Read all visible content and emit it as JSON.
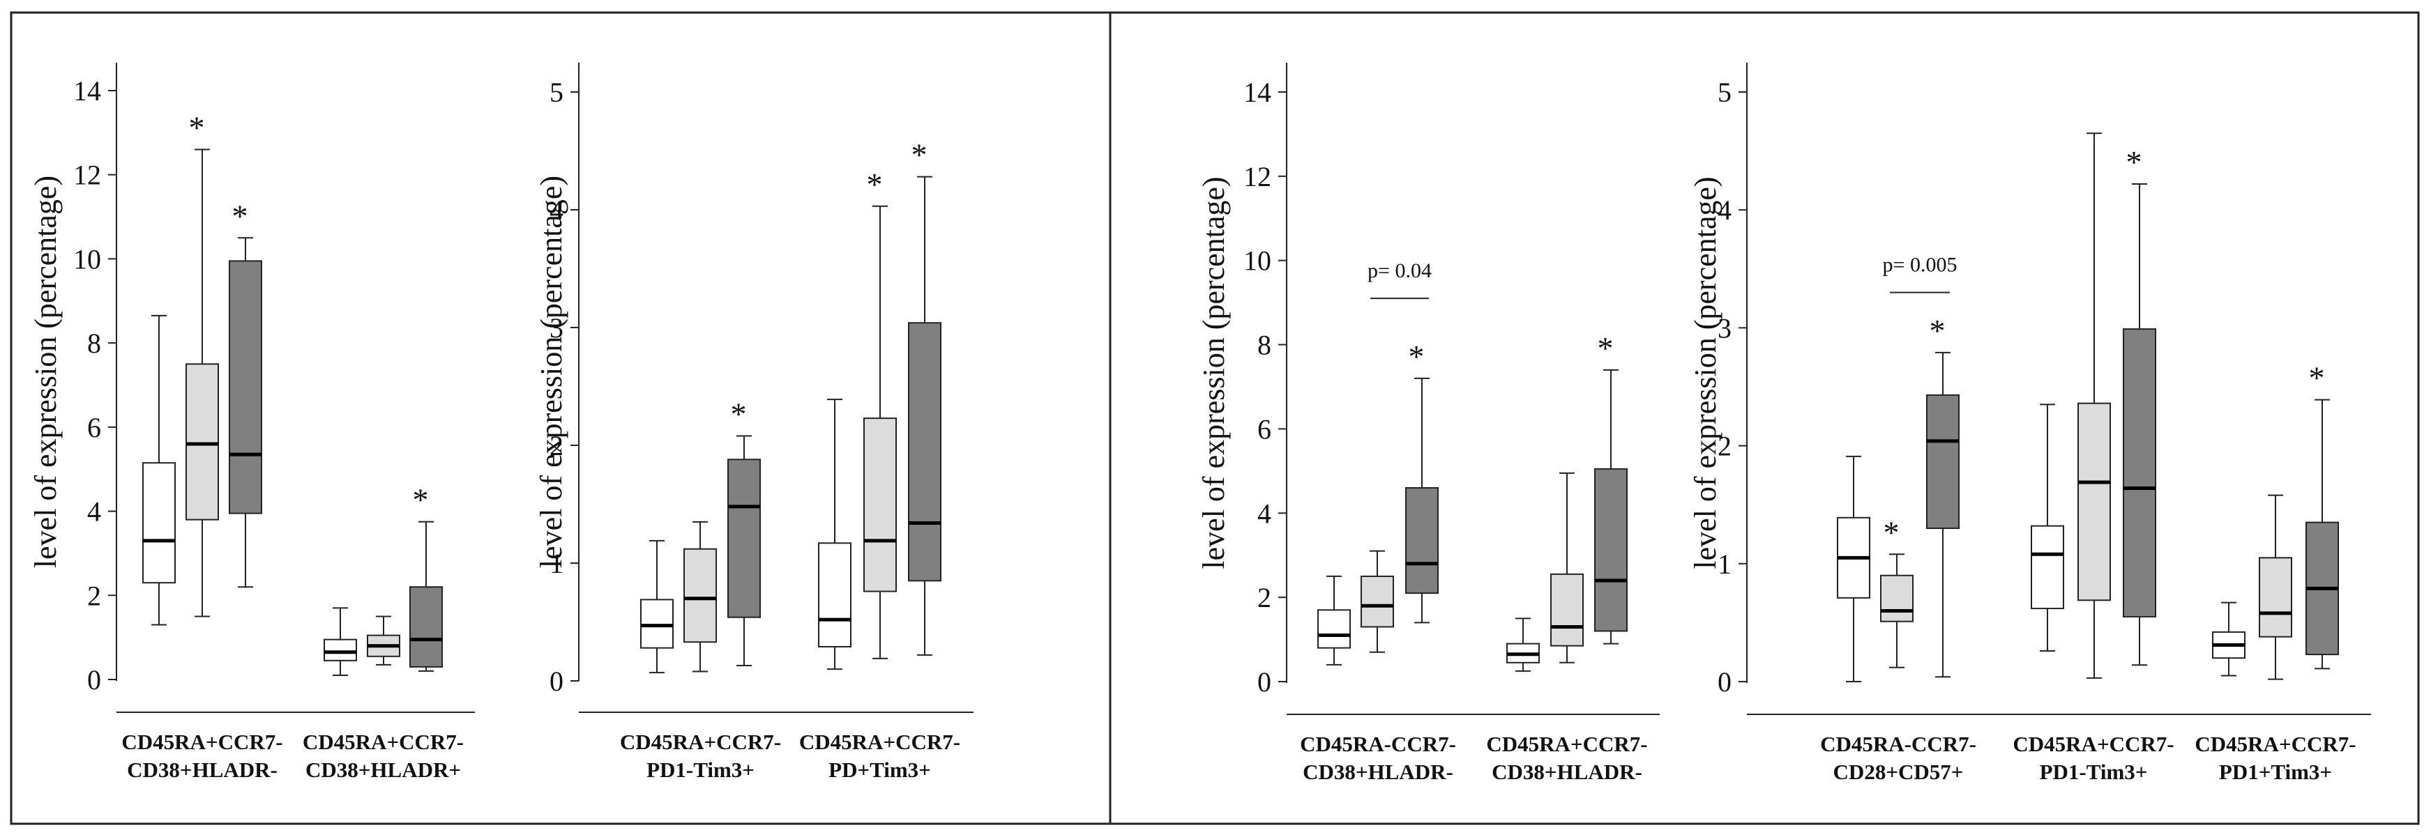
{
  "colors": {
    "group1": "#ffffff",
    "group2": "#dcdcdc",
    "group3": "#808080",
    "stroke": "#222222"
  },
  "chart_data": [
    {
      "type": "box",
      "ylabel": "level of expression (percentage)",
      "ylim": [
        0,
        14
      ],
      "yticks": [
        "0",
        "2",
        "4",
        "6",
        "8",
        "10",
        "12",
        "14"
      ],
      "categories": [
        {
          "line1": "CD45RA+CCR7-",
          "line2": "CD38+HLADR-",
          "boxes": [
            {
              "whisker_low": 1.3,
              "q1": 2.3,
              "median": 3.3,
              "q3": 5.15,
              "whisker_high": 8.65,
              "star": ""
            },
            {
              "whisker_low": 1.5,
              "q1": 3.8,
              "median": 5.6,
              "q3": 7.5,
              "whisker_high": 12.6,
              "star": "*"
            },
            {
              "whisker_low": 2.2,
              "q1": 3.95,
              "median": 5.35,
              "q3": 9.95,
              "whisker_high": 10.5,
              "star": "*"
            }
          ]
        },
        {
          "line1": "CD45RA+CCR7-",
          "line2": "CD38+HLADR+",
          "boxes": [
            {
              "whisker_low": 0.1,
              "q1": 0.45,
              "median": 0.65,
              "q3": 0.95,
              "whisker_high": 1.7,
              "star": ""
            },
            {
              "whisker_low": 0.35,
              "q1": 0.55,
              "median": 0.8,
              "q3": 1.05,
              "whisker_high": 1.5,
              "star": ""
            },
            {
              "whisker_low": 0.2,
              "q1": 0.3,
              "median": 0.95,
              "q3": 2.2,
              "whisker_high": 3.75,
              "star": "*"
            }
          ]
        }
      ]
    },
    {
      "type": "box",
      "ylabel": "level of expression (percentage)",
      "ylim": [
        0,
        5
      ],
      "yticks": [
        "0",
        "1",
        "2",
        "3",
        "4",
        "5"
      ],
      "categories": [
        {
          "line1": "CD45RA+CCR7-",
          "line2": "PD1-Tim3+",
          "boxes": [
            {
              "whisker_low": 0.07,
              "q1": 0.28,
              "median": 0.47,
              "q3": 0.69,
              "whisker_high": 1.19,
              "star": ""
            },
            {
              "whisker_low": 0.08,
              "q1": 0.33,
              "median": 0.7,
              "q3": 1.12,
              "whisker_high": 1.35,
              "star": ""
            },
            {
              "whisker_low": 0.13,
              "q1": 0.54,
              "median": 1.48,
              "q3": 1.88,
              "whisker_high": 2.08,
              "star": "*"
            }
          ]
        },
        {
          "line1": "CD45RA+CCR7-",
          "line2": "PD+Tim3+",
          "boxes": [
            {
              "whisker_low": 0.1,
              "q1": 0.29,
              "median": 0.52,
              "q3": 1.17,
              "whisker_high": 2.39,
              "star": ""
            },
            {
              "whisker_low": 0.19,
              "q1": 0.76,
              "median": 1.19,
              "q3": 2.23,
              "whisker_high": 4.03,
              "star": "*"
            },
            {
              "whisker_low": 0.22,
              "q1": 0.85,
              "median": 1.34,
              "q3": 3.04,
              "whisker_high": 4.28,
              "star": "*"
            }
          ]
        }
      ]
    },
    {
      "type": "box",
      "ylabel": "level of expression (percentage)",
      "ylim": [
        0,
        14
      ],
      "yticks": [
        "0",
        "2",
        "4",
        "6",
        "8",
        "10",
        "12",
        "14"
      ],
      "pvalue": {
        "text": "p= 0.04",
        "category": 0,
        "from_box": 1,
        "to_box": 2,
        "value": 9.1
      },
      "categories": [
        {
          "line1": "CD45RA-CCR7-",
          "line2": "CD38+HLADR-",
          "boxes": [
            {
              "whisker_low": 0.4,
              "q1": 0.8,
              "median": 1.1,
              "q3": 1.7,
              "whisker_high": 2.5,
              "star": ""
            },
            {
              "whisker_low": 0.7,
              "q1": 1.3,
              "median": 1.8,
              "q3": 2.5,
              "whisker_high": 3.1,
              "star": ""
            },
            {
              "whisker_low": 1.4,
              "q1": 2.1,
              "median": 2.8,
              "q3": 4.6,
              "whisker_high": 7.2,
              "star": "*"
            }
          ]
        },
        {
          "line1": "CD45RA+CCR7-",
          "line2": "CD38+HLADR-",
          "boxes": [
            {
              "whisker_low": 0.25,
              "q1": 0.45,
              "median": 0.65,
              "q3": 0.9,
              "whisker_high": 1.5,
              "star": ""
            },
            {
              "whisker_low": 0.45,
              "q1": 0.85,
              "median": 1.3,
              "q3": 2.55,
              "whisker_high": 4.95,
              "star": ""
            },
            {
              "whisker_low": 0.9,
              "q1": 1.2,
              "median": 2.4,
              "q3": 5.05,
              "whisker_high": 7.4,
              "star": "*"
            }
          ]
        }
      ]
    },
    {
      "type": "box",
      "ylabel": "level of expression (percentage)",
      "ylim": [
        0,
        5
      ],
      "yticks": [
        "0",
        "1",
        "2",
        "3",
        "4",
        "5"
      ],
      "pvalue": {
        "text": "p= 0.005",
        "category": 0,
        "from_box": 1,
        "to_box": 2,
        "value": 3.3
      },
      "categories": [
        {
          "line1": "CD45RA-CCR7-",
          "line2": "CD28+CD57+",
          "boxes": [
            {
              "whisker_low": 0.0,
              "q1": 0.71,
              "median": 1.05,
              "q3": 1.39,
              "whisker_high": 1.91,
              "star": ""
            },
            {
              "whisker_low": 0.12,
              "q1": 0.51,
              "median": 0.6,
              "q3": 0.9,
              "whisker_high": 1.08,
              "star": "*"
            },
            {
              "whisker_low": 0.04,
              "q1": 1.3,
              "median": 2.04,
              "q3": 2.43,
              "whisker_high": 2.79,
              "star": "*"
            }
          ]
        },
        {
          "line1": "CD45RA+CCR7-",
          "line2": "PD1-Tim3+",
          "boxes": [
            {
              "whisker_low": 0.26,
              "q1": 0.62,
              "median": 1.08,
              "q3": 1.32,
              "whisker_high": 2.35,
              "star": ""
            },
            {
              "whisker_low": 0.03,
              "q1": 0.69,
              "median": 1.69,
              "q3": 2.36,
              "whisker_high": 4.65,
              "star": ""
            },
            {
              "whisker_low": 0.14,
              "q1": 0.55,
              "median": 1.64,
              "q3": 2.99,
              "whisker_high": 4.22,
              "star": "*"
            }
          ]
        },
        {
          "line1": "CD45RA+CCR7-",
          "line2": "PD1+Tim3+",
          "boxes": [
            {
              "whisker_low": 0.05,
              "q1": 0.2,
              "median": 0.31,
              "q3": 0.42,
              "whisker_high": 0.67,
              "star": ""
            },
            {
              "whisker_low": 0.02,
              "q1": 0.38,
              "median": 0.58,
              "q3": 1.05,
              "whisker_high": 1.58,
              "star": ""
            },
            {
              "whisker_low": 0.11,
              "q1": 0.23,
              "median": 0.79,
              "q3": 1.35,
              "whisker_high": 2.39,
              "star": "*"
            }
          ]
        }
      ]
    }
  ]
}
